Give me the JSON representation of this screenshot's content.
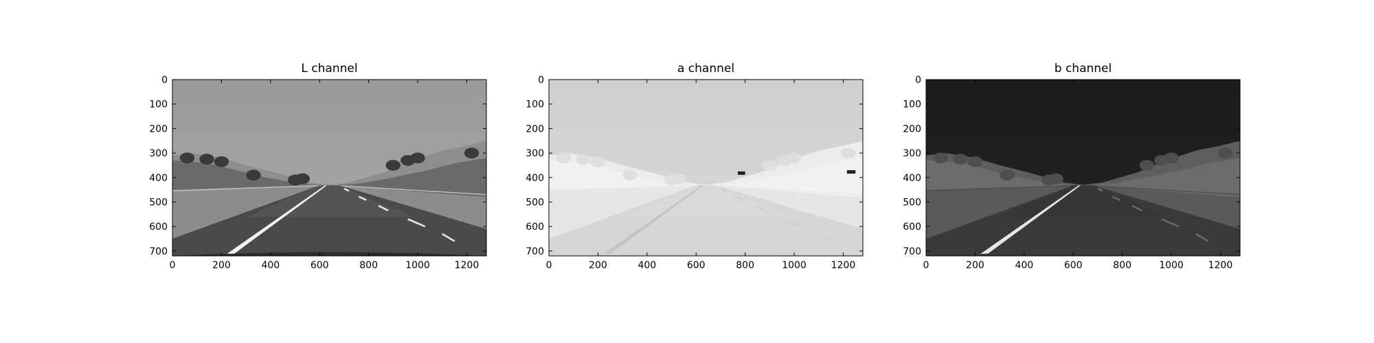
{
  "chart_data": [
    {
      "type": "heatmap",
      "title": "L channel",
      "xlabel": "",
      "ylabel": "",
      "xlim": [
        0,
        1280
      ],
      "ylim": [
        720,
        0
      ],
      "xticks": [
        0,
        200,
        400,
        600,
        800,
        1000,
        1200
      ],
      "yticks": [
        0,
        100,
        200,
        300,
        400,
        500,
        600,
        700
      ],
      "grid": false,
      "colormap": "gray",
      "content": "road-scene"
    },
    {
      "type": "heatmap",
      "title": "a channel",
      "xlabel": "",
      "ylabel": "",
      "xlim": [
        0,
        1280
      ],
      "ylim": [
        720,
        0
      ],
      "xticks": [
        0,
        200,
        400,
        600,
        800,
        1000,
        1200
      ],
      "yticks": [
        0,
        100,
        200,
        300,
        400,
        500,
        600,
        700
      ],
      "grid": false,
      "colormap": "gray",
      "content": "road-scene"
    },
    {
      "type": "heatmap",
      "title": "b channel",
      "xlabel": "",
      "ylabel": "",
      "xlim": [
        0,
        1280
      ],
      "ylim": [
        720,
        0
      ],
      "xticks": [
        0,
        200,
        400,
        600,
        800,
        1000,
        1200
      ],
      "yticks": [
        0,
        100,
        200,
        300,
        400,
        500,
        600,
        700
      ],
      "grid": false,
      "colormap": "gray",
      "content": "road-scene"
    }
  ]
}
